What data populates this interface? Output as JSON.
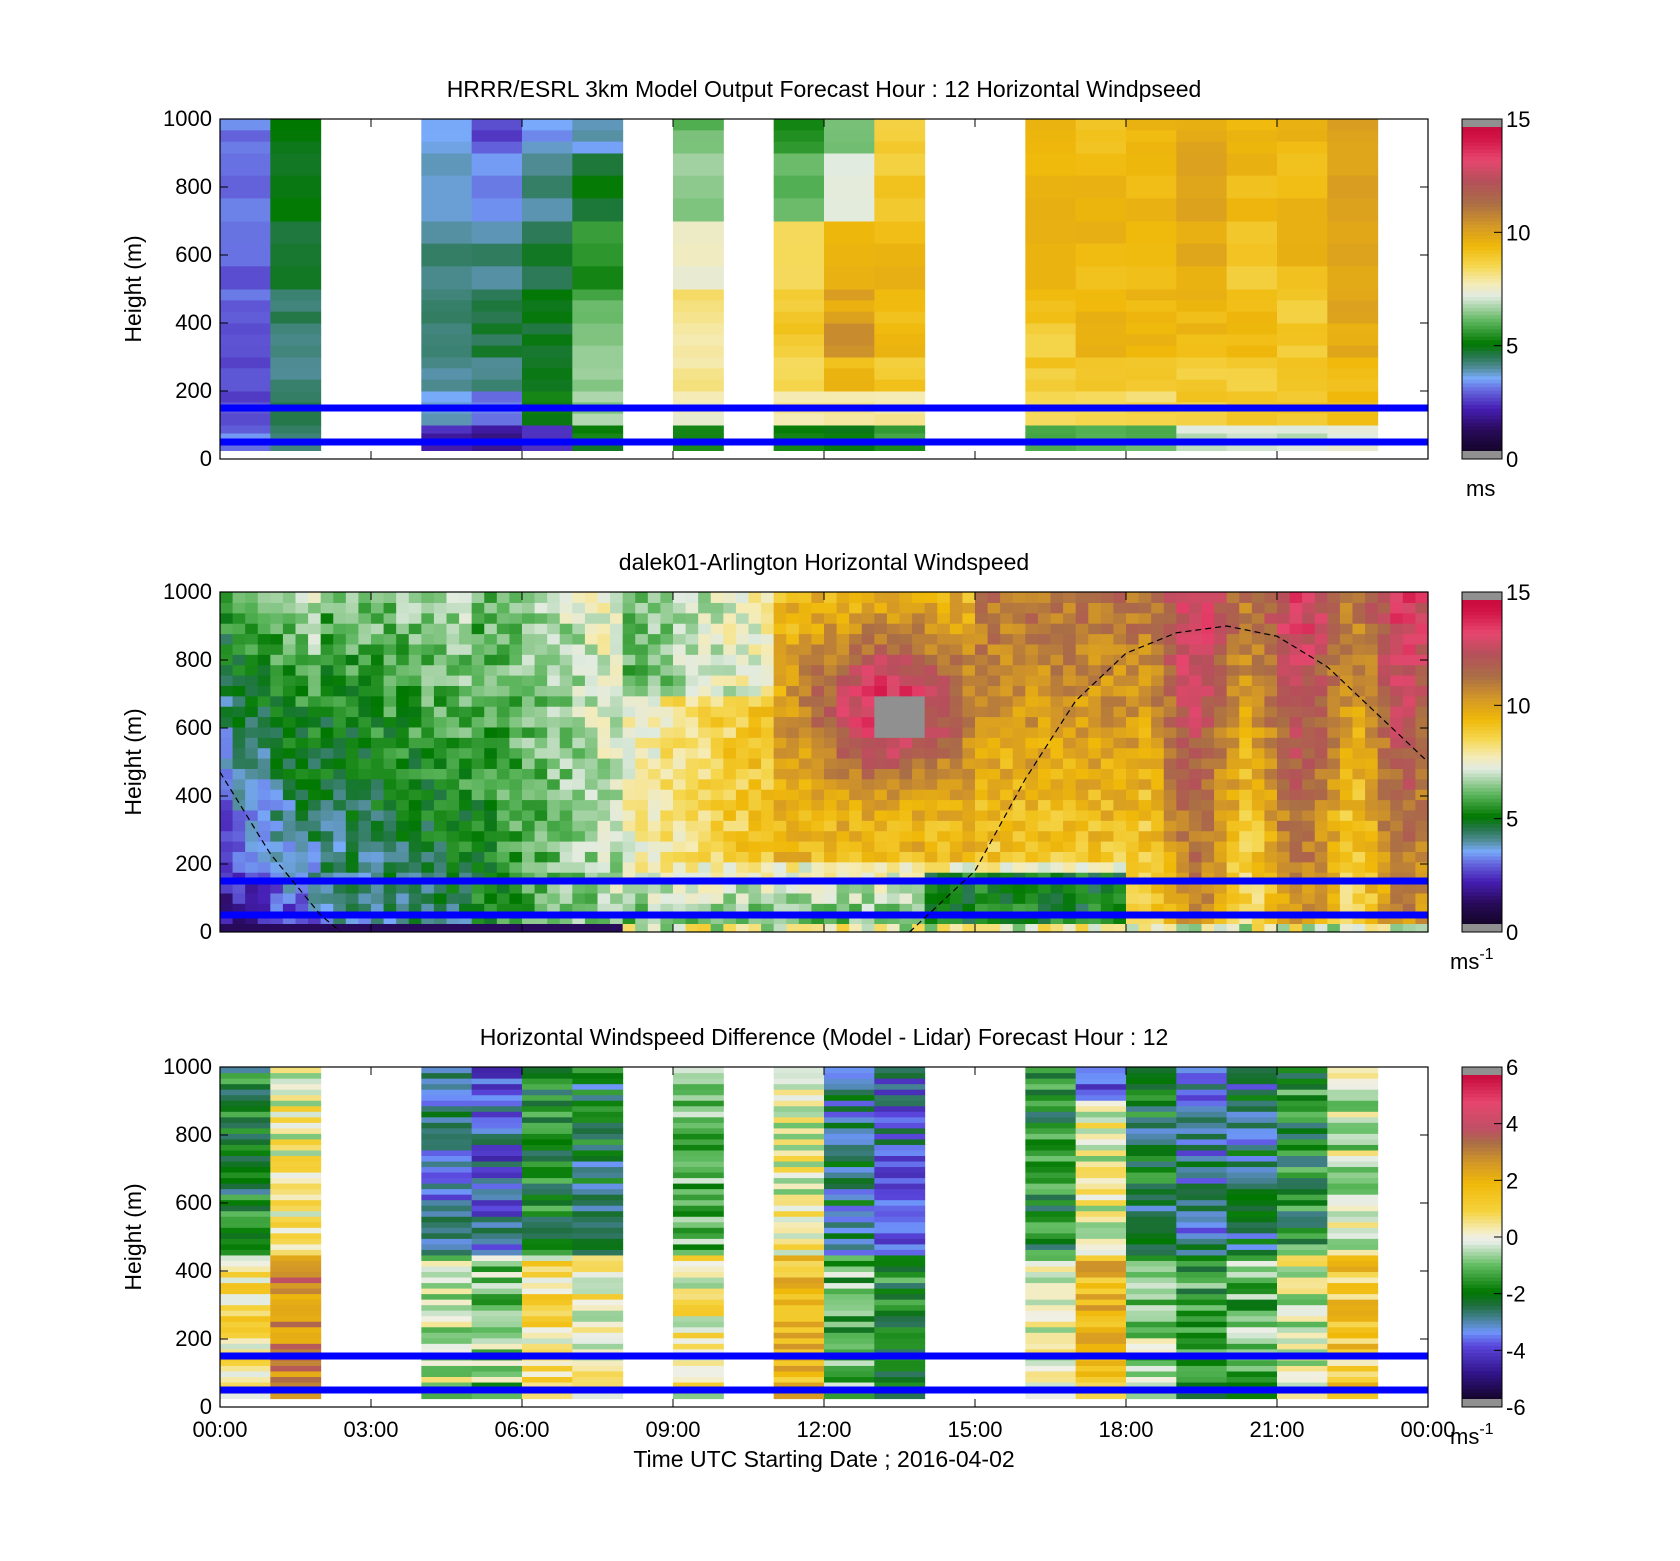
{
  "chart_data": [
    {
      "type": "heatmap",
      "title": "HRRR/ESRL 3km Model Output   Forecast Hour : 12 Horizontal Windpseed",
      "ylabel": "Height (m)",
      "ylim": [
        0,
        1000
      ],
      "yticks": [
        "0",
        "200",
        "400",
        "600",
        "800",
        "1000"
      ],
      "xlim_hours": [
        0,
        24
      ],
      "colorbar": {
        "min": 0,
        "max": 15,
        "ticks": [
          "0",
          "5",
          "10",
          "15"
        ],
        "unit": "ms"
      },
      "reference_lines_m": [
        50,
        150
      ],
      "reference_line_color": "#0000ff",
      "hourly_windspeed_profile_by_height": [
        {
          "hour": 0,
          "speeds": [
            3.0,
            2.5,
            2.5,
            2.5,
            2.8,
            2.8,
            2.8,
            3.0
          ]
        },
        {
          "hour": 1,
          "speeds": [
            4.0,
            4.2,
            4.0,
            4.2,
            4.2,
            4.5,
            5.0,
            5.0
          ]
        },
        {
          "hour": 4,
          "speeds": [
            2.0,
            3.5,
            4.0,
            4.2,
            4.2,
            4.0,
            3.5,
            3.4
          ]
        },
        {
          "hour": 5,
          "speeds": [
            1.5,
            3.0,
            4.0,
            4.5,
            4.6,
            4.0,
            3.2,
            2.5
          ]
        },
        {
          "hour": 6,
          "speeds": [
            2.0,
            5.0,
            5.0,
            4.8,
            4.8,
            4.5,
            4.0,
            3.4
          ]
        },
        {
          "hour": 7,
          "speeds": [
            5.0,
            6.5,
            6.5,
            6.5,
            6.0,
            5.5,
            4.8,
            3.6
          ]
        },
        {
          "hour": 9,
          "speeds": [
            5.0,
            7.5,
            8.0,
            8.0,
            8.2,
            7.5,
            6.5,
            6.0
          ]
        },
        {
          "hour": 11,
          "speeds": [
            5.0,
            8.0,
            8.5,
            9.0,
            9.0,
            8.5,
            6.0,
            5.5
          ]
        },
        {
          "hour": 12,
          "speeds": [
            5.0,
            8.0,
            9.5,
            10.5,
            10.0,
            9.5,
            7.5,
            6.5
          ]
        },
        {
          "hour": 13,
          "speeds": [
            5.5,
            8.0,
            9.0,
            9.5,
            9.5,
            9.5,
            9.0,
            9.0
          ]
        },
        {
          "hour": 16,
          "speeds": [
            6.0,
            8.5,
            9.0,
            9.0,
            9.5,
            9.5,
            9.5,
            9.5
          ]
        },
        {
          "hour": 17,
          "speeds": [
            6.0,
            8.5,
            9.0,
            9.5,
            9.5,
            9.5,
            9.5,
            9.0
          ]
        },
        {
          "hour": 18,
          "speeds": [
            6.0,
            8.5,
            9.0,
            9.5,
            9.5,
            9.5,
            9.5,
            9.5
          ]
        },
        {
          "hour": 19,
          "speeds": [
            7.0,
            9.0,
            9.0,
            9.5,
            9.5,
            10.0,
            10.0,
            10.0
          ]
        },
        {
          "hour": 20,
          "speeds": [
            7.0,
            9.0,
            9.0,
            9.5,
            9.5,
            9.0,
            9.5,
            9.5
          ]
        },
        {
          "hour": 21,
          "speeds": [
            7.0,
            9.0,
            9.0,
            9.0,
            9.0,
            9.5,
            9.5,
            9.5
          ]
        },
        {
          "hour": 22,
          "speeds": [
            7.5,
            9.5,
            9.5,
            10.0,
            10.0,
            10.0,
            10.0,
            10.0
          ]
        }
      ]
    },
    {
      "type": "heatmap",
      "title": "dalek01-Arlington  Horizontal Windspeed",
      "ylabel": "Height (m)",
      "ylim": [
        0,
        1000
      ],
      "yticks": [
        "0",
        "200",
        "400",
        "600",
        "800",
        "1000"
      ],
      "xlim_hours": [
        0,
        24
      ],
      "colorbar": {
        "min": 0,
        "max": 15,
        "ticks": [
          "0",
          "5",
          "10",
          "15"
        ],
        "unit": "ms",
        "unit_superscript": "-1"
      },
      "reference_lines_m": [
        50,
        150
      ],
      "reference_line_color": "#0000ff",
      "dashed_curve_hours_m": [
        [
          0,
          470
        ],
        [
          1,
          230
        ],
        [
          2,
          50
        ],
        [
          2.4,
          0
        ],
        [
          13.7,
          0
        ],
        [
          15,
          180
        ],
        [
          16,
          450
        ],
        [
          17,
          680
        ],
        [
          18,
          820
        ],
        [
          19,
          880
        ],
        [
          20,
          900
        ],
        [
          21,
          870
        ],
        [
          22,
          780
        ],
        [
          23,
          640
        ],
        [
          24,
          500
        ]
      ]
    },
    {
      "type": "heatmap",
      "title": "Horizontal Windspeed Difference (Model - Lidar) Forecast Hour : 12",
      "ylabel": "Height (m)",
      "xlabel": "Time UTC  Starting Date ; 2016-04-02",
      "ylim": [
        0,
        1000
      ],
      "yticks": [
        "0",
        "200",
        "400",
        "600",
        "800",
        "1000"
      ],
      "xticks": [
        "00:00",
        "03:00",
        "06:00",
        "09:00",
        "12:00",
        "15:00",
        "18:00",
        "21:00",
        "00:00"
      ],
      "xlim_hours": [
        0,
        24
      ],
      "colorbar": {
        "min": -6,
        "max": 6,
        "ticks": [
          "-6",
          "-4",
          "-2",
          "0",
          "2",
          "4",
          "6"
        ],
        "unit": "ms",
        "unit_superscript": "-1"
      },
      "reference_lines_m": [
        50,
        150
      ],
      "reference_line_color": "#0000ff"
    }
  ]
}
